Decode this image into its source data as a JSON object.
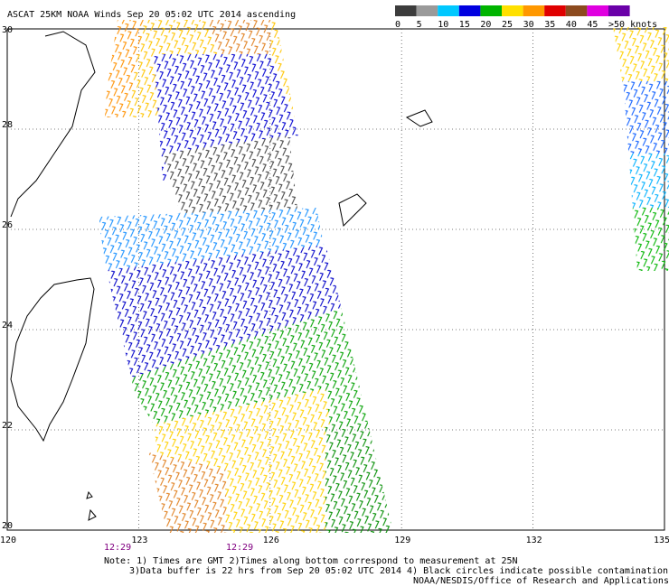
{
  "title": "ASCAT 25KM NOAA Winds Sep 20 05:02 UTC 2014 ascending",
  "legend": {
    "labels": [
      "0",
      "5",
      "10",
      "15",
      "20",
      "25",
      "30",
      "35",
      "40",
      "45",
      ">50 knots"
    ],
    "colors": [
      "#3c3c3c",
      "#9a9a9a",
      "#00c8ff",
      "#0000e0",
      "#00b400",
      "#ffe000",
      "#ff9800",
      "#e00000",
      "#8c4a1e",
      "#e000e0",
      "#6a00a8"
    ]
  },
  "lat_labels": [
    "30",
    "28",
    "26",
    "24",
    "22",
    "20"
  ],
  "lon_labels": [
    "120",
    "123",
    "126",
    "129",
    "132",
    "135"
  ],
  "times": [
    "12:29",
    "12:29"
  ],
  "notes": [
    "Note: 1) Times are GMT 2)Times along bottom correspond to measurement at 25N",
    "3)Data buffer is 22 hrs from Sep 20 05:02 UTC 2014 4) Black circles indicate possible contamination",
    "NOAA/NESDIS/Office of Research and Applications"
  ]
}
